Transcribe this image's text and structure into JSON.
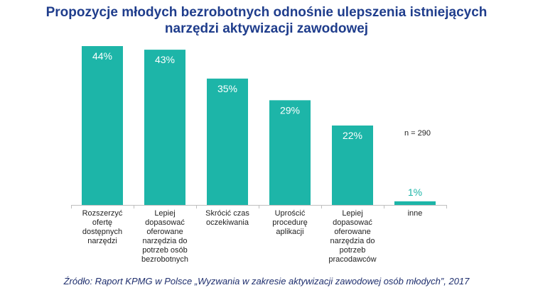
{
  "title_lines": [
    "Propozycje młodych bezrobotnych odnośnie ulepszenia istniejących",
    "narzędzi aktywizacji zawodowej"
  ],
  "note": "n =  290",
  "source": "Źródło: Raport KPMG w Polsce „Wyzwania w zakresie aktywizacji zawodowej osób młodych”, 2017",
  "colors": {
    "bar": "#1db5a8",
    "title": "#1f3d8c",
    "label_outside": "#1db5a8",
    "label_inside": "#ffffff"
  },
  "chart_data": {
    "type": "bar",
    "title": "Propozycje młodych bezrobotnych odnośnie ulepszenia istniejących narzędzi aktywizacji zawodowej",
    "categories": [
      "Rozszerzyć ofertę dostępnych narzędzi",
      "Lepiej dopasować oferowane narzędzia do potrzeb osób bezrobotnych",
      "Skrócić czas oczekiwania",
      "Uprościć procedurę aplikacji",
      "Lepiej dopasować oferowane narzędzia do potrzeb pracodawców",
      "inne"
    ],
    "category_lines": [
      [
        "Rozszerzyć",
        "ofertę",
        "dostępnych",
        "narzędzi"
      ],
      [
        "Lepiej",
        "dopasować",
        "oferowane",
        "narzędzia do",
        "potrzeb osób",
        "bezrobotnych"
      ],
      [
        "Skrócić czas",
        "oczekiwania"
      ],
      [
        "Uprościć",
        "procedurę",
        "aplikacji"
      ],
      [
        "Lepiej",
        "dopasować",
        "oferowane",
        "narzędzia do",
        "potrzeb",
        "pracodawców"
      ],
      [
        "inne"
      ]
    ],
    "values": [
      44,
      43,
      35,
      29,
      22,
      1
    ],
    "value_labels": [
      "44%",
      "43%",
      "35%",
      "29%",
      "22%",
      "1%"
    ],
    "ylim": [
      0,
      44
    ],
    "xlabel": "",
    "ylabel": "",
    "grid": false
  }
}
